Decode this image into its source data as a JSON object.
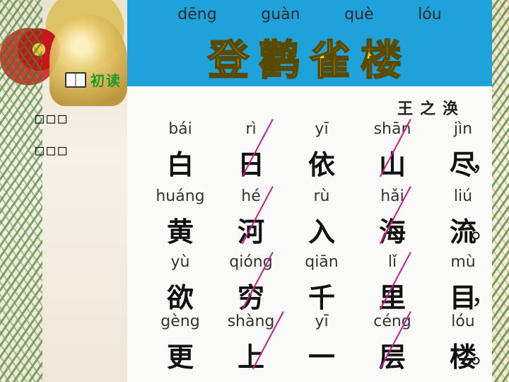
{
  "slide": {
    "intro_label": "初读",
    "placeholder_line_1": "□□□",
    "placeholder_line_2": "□□□"
  },
  "poem": {
    "title_pinyin": [
      "dēng",
      "guàn",
      "què",
      "lóu"
    ],
    "title": "登鹳雀楼",
    "author": "王之涣",
    "lines": [
      {
        "pinyin": [
          "bái",
          "rì",
          "yī",
          "shān",
          "jìn"
        ],
        "hanzi": [
          "白",
          "日",
          "依",
          "山",
          "尽"
        ],
        "punct": "，"
      },
      {
        "pinyin": [
          "huáng",
          "hé",
          "rù",
          "hǎi",
          "liú"
        ],
        "hanzi": [
          "黄",
          "河",
          "入",
          "海",
          "流"
        ],
        "punct": "。"
      },
      {
        "pinyin": [
          "yù",
          "qióng",
          "qiān",
          "lǐ",
          "mù"
        ],
        "hanzi": [
          "欲",
          "穷",
          "千",
          "里",
          "目"
        ],
        "punct": "，"
      },
      {
        "pinyin": [
          "gèng",
          "shàng",
          "yī",
          "céng",
          "lóu"
        ],
        "hanzi": [
          "更",
          "上",
          "一",
          "层",
          "楼"
        ],
        "punct": "。"
      }
    ]
  },
  "colors": {
    "header_bg": "#1fa2d9",
    "title_color": "#f5d800",
    "rhythm_mark": "#c81b8f",
    "intro_label": "#1a9a2a"
  },
  "icons": {
    "intro": "book-icon"
  }
}
